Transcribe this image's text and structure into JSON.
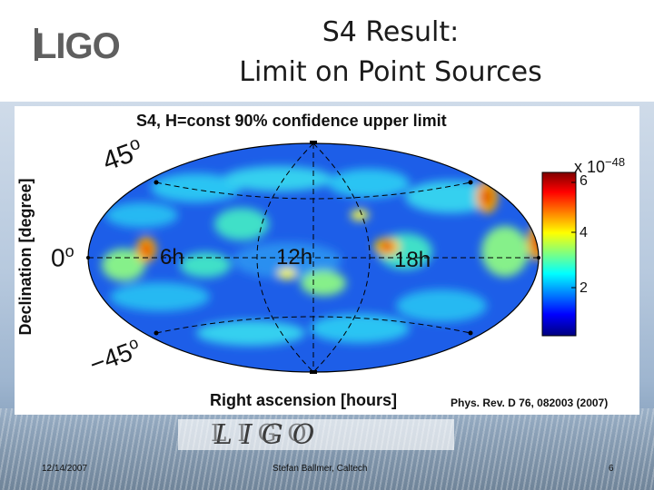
{
  "slide": {
    "logo_text": "LIGO",
    "title_line1": "S4 Result:",
    "title_line2": "Limit on Point Sources",
    "reference": "Phys. Rev. D 76, 082003 (2007)",
    "wordmark": "LIGO",
    "footer": {
      "date": "12/14/2007",
      "author": "Stefan Ballmer, Caltech",
      "page": "6"
    }
  },
  "figure": {
    "title": "S4, H=const 90% confidence upper limit",
    "xlabel": "Right ascension [hours]",
    "ylabel": "Declination [degree]",
    "ra_labels": [
      "6h",
      "12h",
      "18h"
    ],
    "dec_labels": {
      "plus45": "45",
      "zero": "0",
      "minus45": "−45",
      "degree_mark": "o"
    },
    "colorbar": {
      "exponent_prefix": "x 10",
      "exponent": "−48",
      "ticks": [
        "6",
        "4",
        "2"
      ],
      "range": [
        0.7,
        7.2
      ],
      "colors": [
        "#7f0000",
        "#ff0000",
        "#ffff00",
        "#00ffff",
        "#0000ff",
        "#00007f"
      ]
    }
  }
}
